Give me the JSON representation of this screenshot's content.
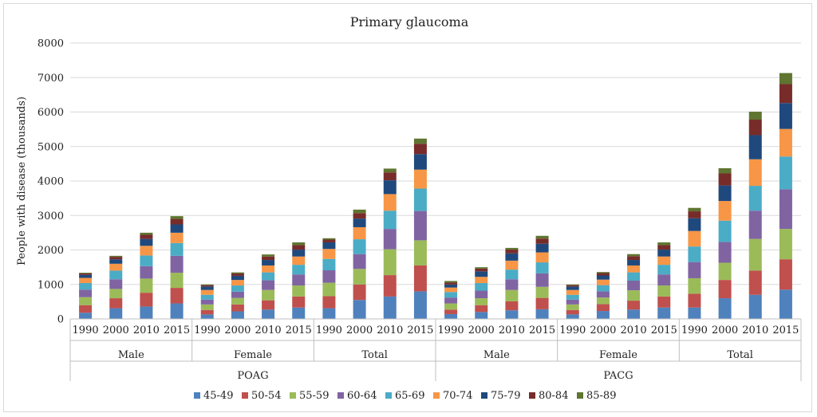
{
  "chart_data": {
    "type": "bar",
    "stacked": true,
    "title": "Primary glaucoma",
    "xlabel": "",
    "ylabel": "People with disease (thousands)",
    "ylim": [
      0,
      8000
    ],
    "yticks": [
      0,
      1000,
      2000,
      3000,
      4000,
      5000,
      6000,
      7000,
      8000
    ],
    "grid": true,
    "legend_position": "bottom",
    "series": [
      {
        "name": "45-49",
        "color": "#4f81bd"
      },
      {
        "name": "50-54",
        "color": "#c0504d"
      },
      {
        "name": "55-59",
        "color": "#9bbb59"
      },
      {
        "name": "60-64",
        "color": "#8064a2"
      },
      {
        "name": "65-69",
        "color": "#4bacc6"
      },
      {
        "name": "70-74",
        "color": "#f79646"
      },
      {
        "name": "75-79",
        "color": "#1f497d"
      },
      {
        "name": "80-84",
        "color": "#772c2a"
      },
      {
        "name": "85-89",
        "color": "#5f7530"
      }
    ],
    "groups": [
      {
        "label": "POAG",
        "subgroups": [
          {
            "label": "Male",
            "bars": [
              {
                "label": "1990",
                "values": [
                  180,
                  220,
                  230,
                  220,
                  190,
                  150,
                  90,
                  40,
                  20
                ]
              },
              {
                "label": "2000",
                "values": [
                  310,
                  290,
                  270,
                  280,
                  250,
                  200,
                  130,
                  70,
                  30
                ]
              },
              {
                "label": "2010",
                "values": [
                  360,
                  400,
                  410,
                  360,
                  310,
                  280,
                  200,
                  120,
                  60
                ]
              },
              {
                "label": "2015",
                "values": [
                  450,
                  450,
                  440,
                  490,
                  370,
                  300,
                  240,
                  160,
                  80
                ]
              }
            ]
          },
          {
            "label": "Female",
            "bars": [
              {
                "label": "1990",
                "values": [
                  130,
                  130,
                  160,
                  140,
                  140,
                  140,
                  100,
                  40,
                  20
                ]
              },
              {
                "label": "2000",
                "values": [
                  220,
                  200,
                  190,
                  180,
                  180,
                  160,
                  120,
                  70,
                  30
                ]
              },
              {
                "label": "2010",
                "values": [
                  270,
                  270,
                  300,
                  280,
                  230,
                  200,
                  160,
                  100,
                  60
                ]
              },
              {
                "label": "2015",
                "values": [
                  330,
                  320,
                  320,
                  320,
                  280,
                  240,
                  200,
                  130,
                  80
                ]
              }
            ]
          },
          {
            "label": "Total",
            "bars": [
              {
                "label": "1990",
                "values": [
                  310,
                  350,
                  390,
                  360,
                  330,
                  290,
                  190,
                  80,
                  40
                ]
              },
              {
                "label": "2000",
                "values": [
                  550,
                  450,
                  450,
                  430,
                  430,
                  350,
                  250,
                  160,
                  100
                ]
              },
              {
                "label": "2010",
                "values": [
                  650,
                  620,
                  750,
                  590,
                  530,
                  480,
                  400,
                  230,
                  110
                ]
              },
              {
                "label": "2015",
                "values": [
                  800,
                  750,
                  730,
                  850,
                  650,
                  550,
                  450,
                  300,
                  150
                ]
              }
            ]
          }
        ]
      },
      {
        "label": "PACG",
        "subgroups": [
          {
            "label": "Male",
            "bars": [
              {
                "label": "1990",
                "values": [
                  140,
                  130,
                  180,
                  170,
                  160,
                  130,
                  90,
                  60,
                  40
                ]
              },
              {
                "label": "2000",
                "values": [
                  200,
                  200,
                  200,
                  220,
                  220,
                  180,
                  160,
                  80,
                  40
                ]
              },
              {
                "label": "2010",
                "values": [
                  250,
                  260,
                  330,
                  310,
                  280,
                  260,
                  210,
                  110,
                  50
                ]
              },
              {
                "label": "2015",
                "values": [
                  280,
                  330,
                  320,
                  390,
                  320,
                  290,
                  250,
                  150,
                  80
                ]
              }
            ]
          },
          {
            "label": "Female",
            "bars": [
              {
                "label": "1990",
                "values": [
                  130,
                  130,
                  160,
                  140,
                  140,
                  140,
                  100,
                  40,
                  20
                ]
              },
              {
                "label": "2000",
                "values": [
                  230,
                  200,
                  190,
                  180,
                  180,
                  160,
                  120,
                  70,
                  30
                ]
              },
              {
                "label": "2010",
                "values": [
                  270,
                  260,
                  300,
                  280,
                  240,
                  200,
                  160,
                  110,
                  60
                ]
              },
              {
                "label": "2015",
                "values": [
                  330,
                  320,
                  320,
                  320,
                  280,
                  240,
                  200,
                  130,
                  80
                ]
              }
            ]
          },
          {
            "label": "Total",
            "bars": [
              {
                "label": "1990",
                "values": [
                  330,
                  400,
                  450,
                  470,
                  450,
                  450,
                  370,
                  200,
                  100
                ]
              },
              {
                "label": "2000",
                "values": [
                  600,
                  530,
                  500,
                  600,
                  620,
                  570,
                  450,
                  350,
                  150
                ]
              },
              {
                "label": "2010",
                "values": [
                  700,
                  700,
                  920,
                  820,
                  720,
                  770,
                  700,
                  450,
                  230
                ]
              },
              {
                "label": "2015",
                "values": [
                  850,
                  880,
                  880,
                  1150,
                  950,
                  800,
                  750,
                  550,
                  320
                ]
              }
            ]
          }
        ]
      }
    ]
  }
}
